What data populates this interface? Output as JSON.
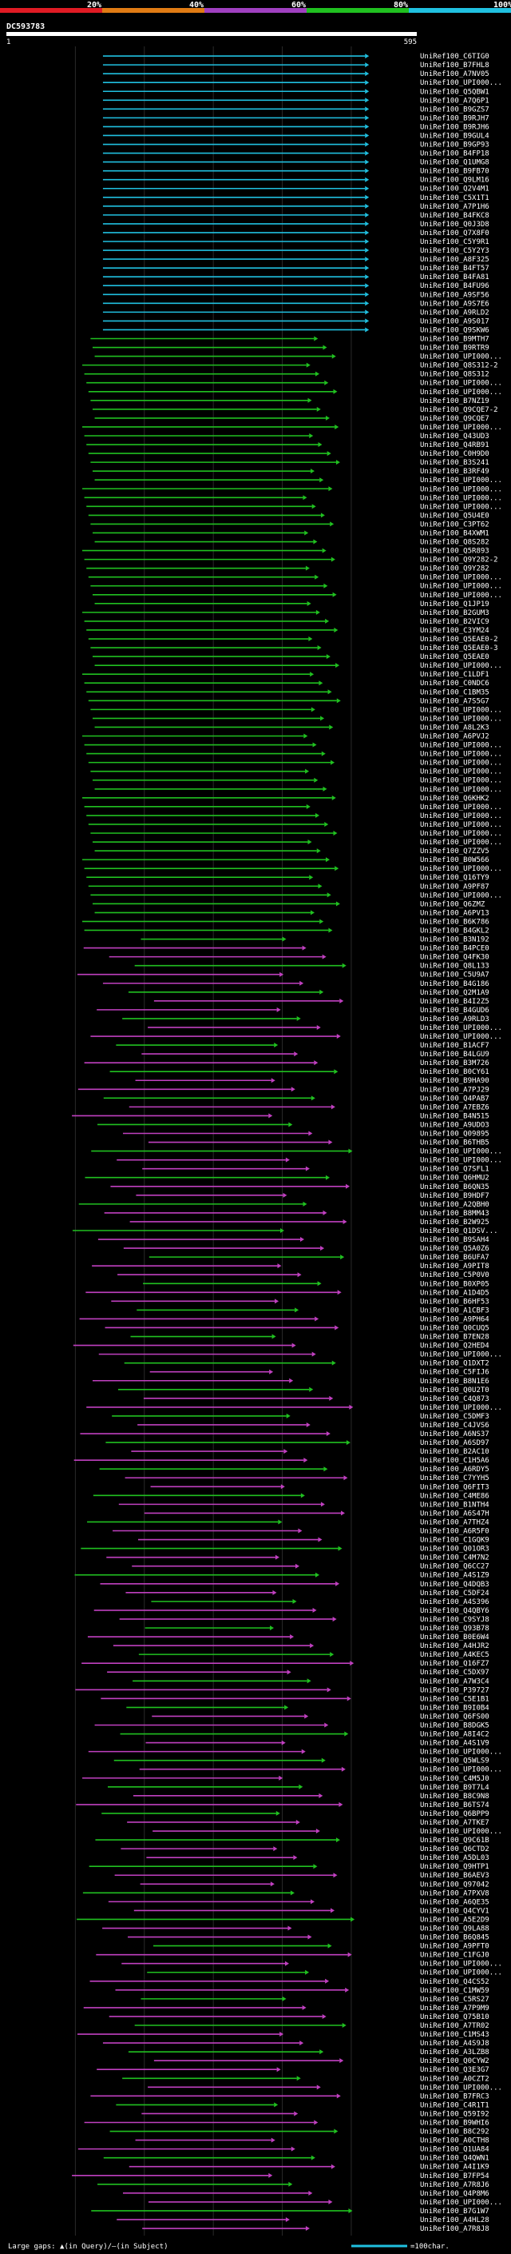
{
  "chart_data": {
    "type": "alignment",
    "query_name": "DC593783",
    "query_start": "1",
    "query_end": "595",
    "query_length": 595,
    "identity_scale_ticks": [
      "20%",
      "40%",
      "60%",
      "80%",
      "100%"
    ],
    "identity_scale_colors": [
      "#e01b24",
      "#e07b14",
      "#a040c0",
      "#20c020",
      "#20c0e0"
    ],
    "footer": {
      "gaps_text": "Large gaps: ▲(in Query)/—(in Subject)",
      "scale_text": "=100char."
    },
    "subject_names": [
      "UniRef100_C6TIG0",
      "UniRef100_B7FHL8",
      "UniRef100_A7NV05",
      "UniRef100_UPI000...",
      "UniRef100_Q5QBW1",
      "UniRef100_A7Q6P1",
      "UniRef100_B9GZS7",
      "UniRef100_B9RJH7",
      "UniRef100_B9RJH6",
      "UniRef100_B9GUL4",
      "UniRef100_B9GP93",
      "UniRef100_B4FP18",
      "UniRef100_Q1UMG8",
      "UniRef100_B9FB70",
      "UniRef100_Q9LM16",
      "UniRef100_Q2V4M1",
      "UniRef100_C5X1T1",
      "UniRef100_A7P1H6",
      "UniRef100_B4FKC8",
      "UniRef100_Q0J3D8",
      "UniRef100_Q7X8F0",
      "UniRef100_C5Y9R1",
      "UniRef100_C5Y2Y3",
      "UniRef100_A8F325",
      "UniRef100_B4FT57",
      "UniRef100_B4FA81",
      "UniRef100_B4FU96",
      "UniRef100_A9SF56",
      "UniRef100_A9S7E6",
      "UniRef100_A9RLD2",
      "UniRef100_A9S017",
      "UniRef100_Q9SKW6",
      "UniRef100_B9MTH7",
      "UniRef100_B9RTR9",
      "UniRef100_UPI000...",
      "UniRef100_Q8S312-2",
      "UniRef100_Q8S312",
      "UniRef100_UPI000...",
      "UniRef100_UPI000...",
      "UniRef100_B7NZ19",
      "UniRef100_Q9CQE7-2",
      "UniRef100_Q9CQE7",
      "UniRef100_UPI000...",
      "UniRef100_Q43UD3",
      "UniRef100_Q4RB91",
      "UniRef100_C0H9D0",
      "UniRef100_B3S241",
      "UniRef100_B3RF49",
      "UniRef100_UPI000...",
      "UniRef100_UPI000...",
      "UniRef100_UPI000...",
      "UniRef100_UPI000...",
      "UniRef100_Q5U4E0",
      "UniRef100_C3PT62",
      "UniRef100_B4XWM1",
      "UniRef100_Q8S282",
      "UniRef100_Q5R893",
      "UniRef100_Q9Y282-2",
      "UniRef100_Q9Y282",
      "UniRef100_UPI000...",
      "UniRef100_UPI000...",
      "UniRef100_UPI000...",
      "UniRef100_Q1JP19",
      "UniRef100_B2GUM3",
      "UniRef100_B2VIC9",
      "UniRef100_C3YM24",
      "UniRef100_Q5EAE0-2",
      "UniRef100_Q5EAE0-3",
      "UniRef100_Q5EAE0",
      "UniRef100_UPI000...",
      "UniRef100_C1LDF1",
      "UniRef100_C0NDC6",
      "UniRef100_C1BM35",
      "UniRef100_A7S5G7",
      "UniRef100_UPI000...",
      "UniRef100_UPI000...",
      "UniRef100_A8L2K3",
      "UniRef100_A6PVJ2",
      "UniRef100_UPI000...",
      "UniRef100_UPI000...",
      "UniRef100_UPI000...",
      "UniRef100_UPI000...",
      "UniRef100_UPI000...",
      "UniRef100_UPI000...",
      "UniRef100_Q6KHK2",
      "UniRef100_UPI000...",
      "UniRef100_UPI000...",
      "UniRef100_UPI000...",
      "UniRef100_UPI000...",
      "UniRef100_UPI000...",
      "UniRef100_Q7ZZV5",
      "UniRef100_B0W566",
      "UniRef100_UPI000...",
      "UniRef100_Q16TY9",
      "UniRef100_A9PF87",
      "UniRef100_UPI000...",
      "UniRef100_Q6ZMZ",
      "UniRef100_A6PV13",
      "UniRef100_B6K786",
      "UniRef100_B4GKL2",
      "UniRef100_B3N192",
      "UniRef100_B4PCE0",
      "UniRef100_Q4FK30",
      "UniRef100_Q8L133",
      "UniRef100_C5U9A7",
      "UniRef100_B4G186",
      "UniRef100_Q2M1A9",
      "UniRef100_B4I2Z5",
      "UniRef100_B4GUD6",
      "UniRef100_A9RLD3",
      "UniRef100_UPI000...",
      "UniRef100_UPI000...",
      "UniRef100_B1ACF7",
      "UniRef100_B4LGU9",
      "UniRef100_B3M726",
      "UniRef100_B0CY61",
      "UniRef100_B9HA90",
      "UniRef100_A7PJ29",
      "UniRef100_Q4PAB7",
      "UniRef100_A7EBZ6",
      "UniRef100_B4N515",
      "UniRef100_A9UDO3",
      "UniRef100_Q09895",
      "UniRef100_B6THB5",
      "UniRef100_UPI000...",
      "UniRef100_UPI000...",
      "UniRef100_Q7SFL1",
      "UniRef100_Q6HMU2",
      "UniRef100_B6QN35",
      "UniRef100_B9HDF7",
      "UniRef100_A2QBH0",
      "UniRef100_B8MM43",
      "UniRef100_B2W925",
      "UniRef100_Q1DSV...",
      "UniRef100_B9SAH4",
      "UniRef100_Q5A0Z6",
      "UniRef100_B6UFA7",
      "UniRef100_A9PIT8",
      "UniRef100_C5P0V0",
      "UniRef100_B0XP05",
      "UniRef100_A1D4D5",
      "UniRef100_B6HF53",
      "UniRef100_A1CBF3",
      "UniRef100_A9PH64",
      "UniRef100_Q0CUQ5",
      "UniRef100_B7EN28",
      "UniRef100_Q2HED4",
      "UniRef100_UPI000...",
      "UniRef100_Q1DXT2",
      "UniRef100_C5FIJ6",
      "UniRef100_B8N1E6",
      "UniRef100_Q0U2T0",
      "UniRef100_C4Q873",
      "UniRef100_UPI000...",
      "UniRef100_C5DMF3",
      "UniRef100_C4JVS6",
      "UniRef100_A6NS37",
      "UniRef100_A6SD97",
      "UniRef100_B2AC10",
      "UniRef100_C1H5A6",
      "UniRef100_A6RDY5",
      "UniRef100_C7YYH5",
      "UniRef100_Q6FIT3",
      "UniRef100_C4ME86",
      "UniRef100_B1NTH4",
      "UniRef100_A6S47H",
      "UniRef100_A7THZ4",
      "UniRef100_A6R5F0",
      "UniRef100_C1GQK9",
      "UniRef100_Q01OR3",
      "UniRef100_C4M7N2",
      "UniRef100_Q6CC27",
      "UniRef100_A4S1Z9",
      "UniRef100_Q4DQB3",
      "UniRef100_C5DF24",
      "UniRef100_A4S396",
      "UniRef100_Q4QBY6",
      "UniRef100_C9SYJ8",
      "UniRef100_Q93B78",
      "UniRef100_B0E6W4",
      "UniRef100_A4HJR2",
      "UniRef100_A4KEC5",
      "UniRef100_Q16FZ7",
      "UniRef100_C5DX97",
      "UniRef100_A7W3C4",
      "UniRef100_P39727",
      "UniRef100_C5E1B1",
      "UniRef100_B9I0B4",
      "UniRef100_Q6FS00",
      "UniRef100_B8DGK5",
      "UniRef100_A8I4C2",
      "UniRef100_A4S1V9",
      "UniRef100_UPI000...",
      "UniRef100_Q5WLS9",
      "UniRef100_UPI000...",
      "UniRef100_C4M5J0",
      "UniRef100_B9T7L4",
      "UniRef100_B8C9N8",
      "UniRef100_B6TS74",
      "UniRef100_Q6BPP9",
      "UniRef100_A7TKE7",
      "UniRef100_UPI000...",
      "UniRef100_Q9C61B",
      "UniRef100_Q6CTD2",
      "UniRef100_A5DL03",
      "UniRef100_Q9HTP1",
      "UniRef100_B6AEV3",
      "UniRef100_Q97042",
      "UniRef100_A7PXV8",
      "UniRef100_A6QE35",
      "UniRef100_Q4CYV1",
      "UniRef100_A5E2D9",
      "UniRef100_Q9LA88",
      "UniRef100_B6Q845",
      "UniRef100_A9PFT0",
      "UniRef100_C1FGJ0",
      "UniRef100_UPI000...",
      "UniRef100_UPI000...",
      "UniRef100_Q4CS52",
      "UniRef100_C1MW59",
      "UniRef100_C5RS27",
      "UniRef100_A7P9M9",
      "UniRef100_Q75B10",
      "UniRef100_A7TR02",
      "UniRef100_C1MS43",
      "UniRef100_A4S9J8",
      "UniRef100_A3LZB8",
      "UniRef100_Q0CYW2",
      "UniRef100_Q3E3G7",
      "UniRef100_A0CZT2",
      "UniRef100_UPI000...",
      "UniRef100_B7FRC3",
      "UniRef100_C4R1T1",
      "UniRef100_Q59I92",
      "UniRef100_B9WHI6",
      "UniRef100_B8C292",
      "UniRef100_A0CTH8",
      "UniRef100_Q1UA84",
      "UniRef100_Q4QWN1",
      "UniRef100_A4I1K9",
      "UniRef100_B7FP54",
      "UniRef100_A7R8J6",
      "UniRef100_Q4P8M6",
      "UniRef100_UPI000...",
      "UniRef100_B7G1W7",
      "UniRef100_A4HL28",
      "UniRef100_A7R8J8"
    ]
  }
}
